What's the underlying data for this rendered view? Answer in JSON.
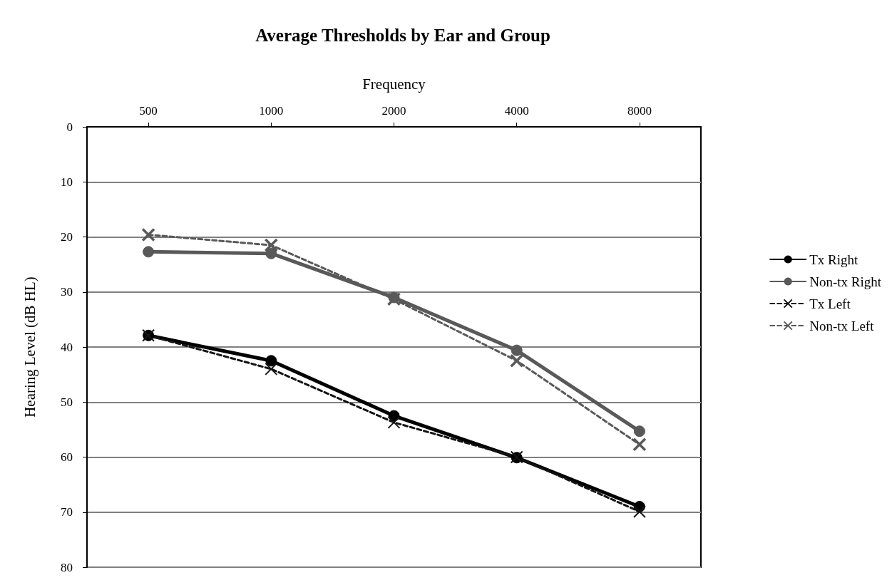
{
  "chart_data": {
    "type": "line",
    "title": "Average Thresholds by Ear and Group",
    "xlabel": "Frequency",
    "ylabel": "Hearing Level (dB HL)",
    "categories": [
      "500",
      "1000",
      "2000",
      "4000",
      "8000"
    ],
    "series": [
      {
        "name": "Tx Right",
        "color": "#000000",
        "marker": "circle",
        "line_style": "solid",
        "values": [
          37.9,
          42.5,
          52.5,
          60.1,
          69.0
        ]
      },
      {
        "name": "Non-tx Right",
        "color": "#595959",
        "marker": "circle",
        "line_style": "solid",
        "values": [
          22.7,
          23.0,
          31.0,
          40.6,
          55.3
        ]
      },
      {
        "name": "Tx Left",
        "color": "#141414",
        "marker": "cross",
        "line_style": "dashed",
        "values": [
          37.9,
          44.0,
          53.7,
          60.0,
          69.9
        ]
      },
      {
        "name": "Non-tx Left",
        "color": "#595959",
        "marker": "cross",
        "line_style": "dashed",
        "values": [
          19.6,
          21.5,
          31.3,
          42.5,
          57.7
        ]
      }
    ],
    "ylim": [
      80,
      0
    ],
    "yticks": [
      0,
      10,
      20,
      30,
      40,
      50,
      60,
      70,
      80
    ],
    "grid": "y",
    "legend": "right"
  }
}
